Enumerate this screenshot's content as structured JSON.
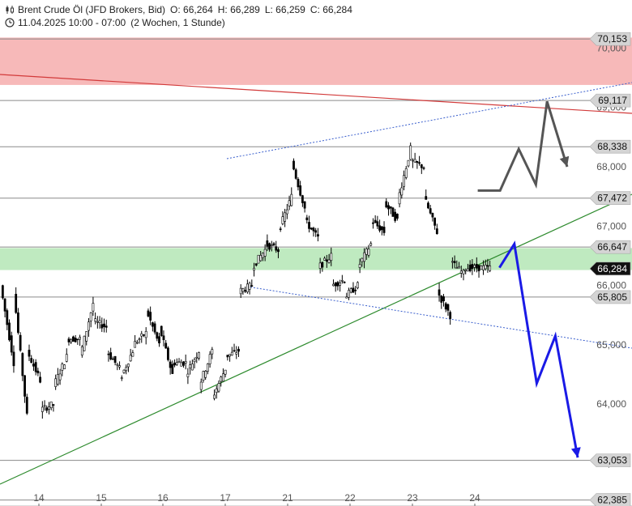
{
  "header": {
    "instrument": "Brent Crude Öl (JFD Brokers, Bid)",
    "open": "O: 66,264",
    "high": "H: 66,289",
    "low": "L: 66,259",
    "close": "C: 66,284",
    "datetime": "11.04.2025 10:00 - 07:00",
    "period": "(2 Wochen, 1 Stunde)"
  },
  "chart_data": {
    "type": "candlestick",
    "x_ticks": [
      "14",
      "15",
      "16",
      "17",
      "21",
      "22",
      "23",
      "24"
    ],
    "y_ticks": [
      "70,000",
      "69,000",
      "68,000",
      "67,000",
      "66,000",
      "65,000",
      "64,000",
      "63,000"
    ],
    "y_tick_values": [
      70,
      69,
      68,
      67,
      66,
      65,
      64,
      63
    ],
    "ylim": [
      62.35,
      70.48
    ],
    "levels": [
      {
        "value": 70.153,
        "label": "70,153"
      },
      {
        "value": 69.117,
        "label": "69,117"
      },
      {
        "value": 68.338,
        "label": "68,338"
      },
      {
        "value": 67.472,
        "label": "67,472"
      },
      {
        "value": 66.647,
        "label": "66,647"
      },
      {
        "value": 65.805,
        "label": "65,805"
      },
      {
        "value": 63.053,
        "label": "63,053"
      },
      {
        "value": 62.385,
        "label": "62,385"
      }
    ],
    "current_price": {
      "value": 66.284,
      "label": "66,284"
    },
    "zones": [
      {
        "from": 69.57,
        "to": 70.0,
        "color": "#f7b9b9"
      },
      {
        "from": 66.26,
        "to": 66.63,
        "color": "#bfeac0"
      }
    ],
    "path": [
      [
        66.0,
        64.7
      ],
      [
        65.9,
        63.8
      ],
      [
        64.9,
        64.4
      ],
      [
        63.9,
        64.0
      ],
      [
        64.3,
        64.8
      ],
      [
        65.1,
        65.1
      ],
      [
        64.8,
        65.7
      ],
      [
        65.4,
        65.3
      ],
      [
        64.9,
        64.6
      ],
      [
        64.4,
        64.9
      ],
      [
        65.0,
        65.2
      ],
      [
        65.6,
        65.0
      ],
      [
        65.3,
        64.5
      ],
      [
        64.7,
        64.7
      ],
      [
        64.5,
        64.9
      ],
      [
        64.3,
        64.9
      ],
      [
        64.1,
        64.6
      ],
      [
        64.8,
        64.9
      ],
      [
        65.9,
        66.0
      ],
      [
        66.3,
        66.6
      ],
      [
        66.7,
        66.6
      ],
      [
        66.9,
        67.5
      ],
      [
        68.1,
        67.3
      ],
      [
        67.1,
        66.8
      ],
      [
        66.3,
        66.5
      ],
      [
        66.0,
        66.1
      ],
      [
        65.8,
        66.0
      ],
      [
        66.3,
        66.7
      ],
      [
        67.1,
        66.9
      ],
      [
        67.4,
        67.1
      ],
      [
        67.4,
        68.3
      ],
      [
        68.1,
        68.0
      ],
      [
        67.5,
        66.9
      ],
      [
        65.9,
        65.5
      ],
      [
        66.4,
        66.2
      ],
      [
        66.3,
        66.3
      ],
      [
        66.3,
        66.3
      ]
    ],
    "arrows": [
      {
        "color": "#555555",
        "points": [
          [
            -12.0,
            67.6
          ],
          [
            -9.0,
            67.6
          ],
          [
            -6.5,
            68.3
          ],
          [
            -4.2,
            67.7
          ],
          [
            -2.7,
            69.1
          ],
          [
            0.0,
            68.0
          ]
        ]
      },
      {
        "color": "#1a1ae6",
        "points": [
          [
            -10.5,
            66.3
          ],
          [
            -8.5,
            66.7
          ],
          [
            -5.5,
            64.35
          ],
          [
            -3.0,
            65.15
          ],
          [
            0.0,
            63.1
          ]
        ]
      }
    ]
  },
  "colors": {
    "resistance_zone": "#f7b9b9",
    "support_zone": "#bfeac0",
    "current_price_tag": "#111111",
    "level_tag": "#d4d4d4",
    "trend_red": "#d23a3a",
    "trend_green": "#2e8b2e",
    "channel_blue": "#3a5fcd",
    "arrow_gray": "#555555",
    "arrow_blue": "#1a1ae6"
  },
  "icons": {
    "header_candle": "candles-icon",
    "header_clock": "clock-icon"
  }
}
